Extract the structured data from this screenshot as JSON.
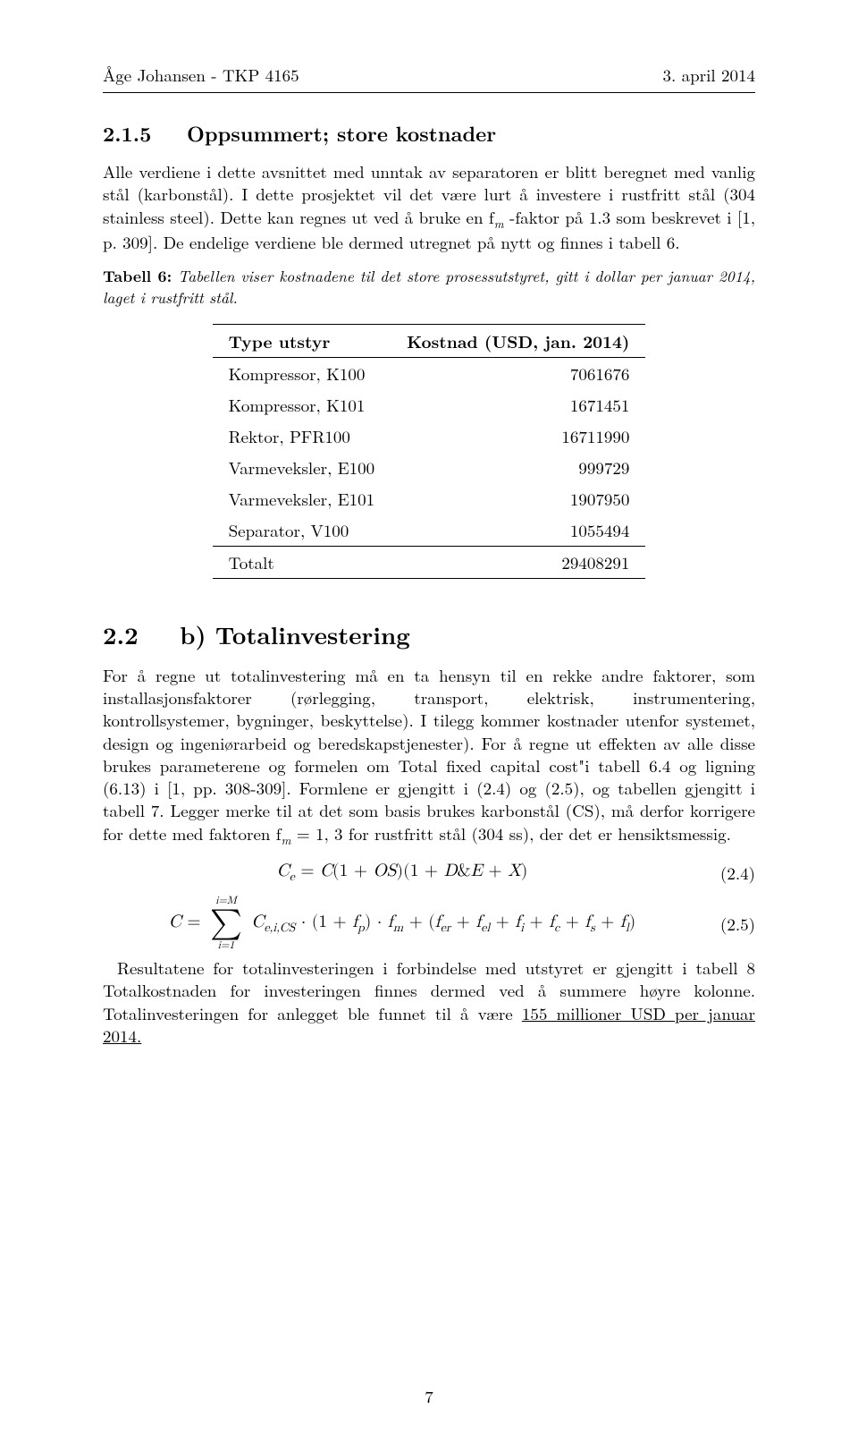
{
  "header": {
    "left": "Åge Johansen - TKP 4165",
    "right": "3. april 2014"
  },
  "section215": {
    "number": "2.1.5",
    "title": "Oppsummert; store kostnader",
    "para1": "Alle verdiene i dette avsnittet med unntak av separatoren er blitt beregnet med vanlig stål (karbonstål). I dette prosjektet vil det være lurt å investere i rustfritt stål (304 stainless steel). Dette kan regnes ut ved å bruke en f",
    "para1_sub": "m",
    "para1_cont": " -faktor på 1.3 som beskrevet i [1, p. 309]. De endelige verdiene ble dermed utregnet på nytt og finnes i tabell 6."
  },
  "table6": {
    "caption_bold": "Tabell 6:",
    "caption_ital": " Tabellen viser kostnadene til det store prosessutstyret, gitt i dollar per januar 2014, laget i rustfritt stål.",
    "col1": "Type utstyr",
    "col2": "Kostnad (USD, jan. 2014)",
    "rows": [
      {
        "label": "Kompressor, K100",
        "value": "7061676"
      },
      {
        "label": "Kompressor, K101",
        "value": "1671451"
      },
      {
        "label": "Rektor, PFR100",
        "value": "16711990"
      },
      {
        "label": "Varmeveksler, E100",
        "value": "999729"
      },
      {
        "label": "Varmeveksler, E101",
        "value": "1907950"
      },
      {
        "label": "Separator, V100",
        "value": "1055494"
      }
    ],
    "total_label": "Totalt",
    "total_value": "29408291"
  },
  "section22": {
    "number": "2.2",
    "title": "b) Totalinvestering",
    "para": "For å regne ut totalinvestering må en ta hensyn til en rekke andre faktorer, som installasjonsfaktorer (rørlegging, transport, elektrisk, instrumentering, kontrollsystemer, bygninger, beskyttelse). I tilegg kommer kostnader utenfor systemet, design og ingeniørarbeid og beredskapstjenester). For å regne ut effekten av alle disse brukes parameterene og formelen om Total fixed capital cost\"i tabell 6.4 og ligning (6.13) i [1, pp. 308-309]. Formlene er gjengitt i (2.4) og (2.5), og tabellen gjengitt i tabell 7. Legger merke til at det som basis brukes karbonstål (CS), må derfor korrigere for dette med faktoren f",
    "para_sub": "m",
    "para_cont": " = 1, 3 for rustfritt stål (304 ss), der det er hensiktsmessig."
  },
  "eq24": {
    "body": "C<span class=\"sub\">e</span> <span class=\"upright\">=</span> C<span class=\"upright\">(1 + </span>OS<span class=\"upright\">)(1 + </span>D<span class=\"upright\">&amp;</span>E <span class=\"upright\">+ </span>X<span class=\"upright\">)</span>",
    "num": "(2.4)"
  },
  "eq25": {
    "lhs": "C <span class=\"upright\">=</span> ",
    "sum_top": "i=M",
    "sum_bot": "i=1",
    "rhs": " C<span class=\"sub\">e,i,CS</span> <span class=\"upright\">· (1 + </span>f<span class=\"sub\">p</span><span class=\"upright\">) · </span>f<span class=\"sub\">m</span> <span class=\"upright\">+ (</span>f<span class=\"sub\">er</span> <span class=\"upright\">+ </span>f<span class=\"sub\">el</span> <span class=\"upright\">+ </span>f<span class=\"sub\">i</span> <span class=\"upright\">+ </span>f<span class=\"sub\">c</span> <span class=\"upright\">+ </span>f<span class=\"sub\">s</span> <span class=\"upright\">+ </span>f<span class=\"sub\">l</span><span class=\"upright\">)</span>",
    "num": "(2.5)"
  },
  "closing": {
    "para_a": "Resultatene for totalinvesteringen i forbindelse med utstyret er gjengitt i tabell 8 Totalkostnaden for investeringen finnes dermed ved å summere høyre kolonne.  Totalinvesteringen  for  anlegget  ble  funnet  til  å  være ",
    "underline": "155 millioner USD per januar 2014."
  },
  "page_number": "7"
}
